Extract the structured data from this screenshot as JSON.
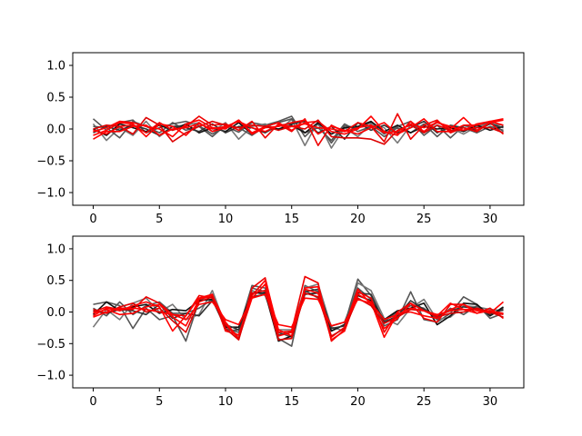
{
  "chart_data": [
    {
      "type": "line",
      "title": "",
      "xlabel": "",
      "ylabel": "",
      "xlim": [
        -1.55,
        32.55
      ],
      "ylim": [
        -1.2,
        1.2
      ],
      "xticks": [
        0,
        5,
        10,
        15,
        20,
        25,
        30
      ],
      "yticks": [
        -1.0,
        -0.5,
        0.0,
        0.5,
        1.0
      ],
      "xtick_labels": [
        "0",
        "5",
        "10",
        "15",
        "20",
        "25",
        "30"
      ],
      "ytick_labels": [
        "−1.0",
        "−0.5",
        "0.0",
        "0.5",
        "1.0"
      ],
      "grid": false,
      "legend": "none",
      "x": [
        0,
        1,
        2,
        3,
        4,
        5,
        6,
        7,
        8,
        9,
        10,
        11,
        12,
        13,
        14,
        15,
        16,
        17,
        18,
        19,
        20,
        21,
        22,
        23,
        24,
        25,
        26,
        27,
        28,
        29,
        30,
        31
      ],
      "series": [
        {
          "color": "#555555",
          "values": [
            0.16,
            -0.02,
            0.1,
            0.14,
            -0.06,
            0.02,
            0.08,
            0.12,
            0.05,
            -0.08,
            0.04,
            -0.05,
            0.1,
            0.06,
            0.12,
            0.2,
            -0.12,
            0.08,
            -0.22,
            0.05,
            0.02,
            0.1,
            -0.08,
            0.04,
            0.12,
            -0.1,
            0.06,
            -0.14,
            0.05,
            0.02,
            0.12,
            -0.04
          ]
        },
        {
          "color": "#777777",
          "values": [
            0.08,
            -0.18,
            0.02,
            -0.1,
            0.12,
            -0.12,
            0.04,
            0.06,
            0.1,
            -0.04,
            0.1,
            -0.16,
            0.04,
            0.08,
            -0.02,
            0.15,
            -0.26,
            0.12,
            -0.3,
            0.02,
            -0.12,
            0.08,
            0.02,
            -0.22,
            0.06,
            -0.04,
            0.1,
            0.02,
            -0.08,
            0.04,
            0.08,
            0.06
          ]
        },
        {
          "color": "#555555",
          "values": [
            0.04,
            0.02,
            -0.14,
            0.12,
            0.04,
            -0.06,
            0.1,
            -0.02,
            0.04,
            -0.12,
            0.06,
            0.02,
            -0.1,
            0.04,
            0.1,
            0.16,
            -0.06,
            0.02,
            -0.18,
            0.08,
            -0.04,
            0.04,
            -0.12,
            0.02,
            -0.06,
            0.08,
            -0.12,
            0.06,
            0.02,
            -0.06,
            0.04,
            -0.02
          ]
        },
        {
          "color": "#111111",
          "values": [
            0.0,
            -0.1,
            0.08,
            0.02,
            -0.04,
            0.06,
            -0.02,
            0.08,
            -0.06,
            0.02,
            -0.04,
            0.1,
            -0.08,
            0.04,
            0.0,
            0.06,
            -0.06,
            0.1,
            -0.08,
            0.02,
            0.04,
            0.12,
            -0.04,
            0.06,
            -0.06,
            0.04,
            0.0,
            0.02,
            -0.04,
            0.06,
            -0.02,
            0.04
          ]
        },
        {
          "color": "#333333",
          "values": [
            -0.06,
            0.04,
            -0.02,
            0.06,
            0.0,
            -0.1,
            0.04,
            0.02,
            -0.04,
            0.08,
            -0.06,
            0.04,
            0.02,
            -0.06,
            0.06,
            0.08,
            0.12,
            -0.06,
            0.04,
            -0.16,
            0.1,
            -0.02,
            0.06,
            -0.06,
            0.02,
            0.12,
            -0.06,
            0.04,
            0.02,
            -0.02,
            0.08,
            0.02
          ]
        },
        {
          "color": "#ee0000",
          "values": [
            -0.02,
            -0.08,
            0.04,
            0.06,
            -0.06,
            0.1,
            -0.02,
            0.04,
            0.2,
            0.06,
            0.08,
            -0.02,
            0.12,
            -0.14,
            0.08,
            -0.04,
            0.16,
            -0.26,
            0.06,
            -0.04,
            0.1,
            0.04,
            -0.2,
            0.24,
            -0.16,
            0.06,
            0.14,
            -0.06,
            0.02,
            -0.04,
            0.1,
            -0.08
          ]
        },
        {
          "color": "#ff0000",
          "values": [
            -0.1,
            -0.02,
            0.1,
            0.08,
            -0.12,
            0.08,
            0.04,
            -0.1,
            0.1,
            -0.04,
            0.02,
            0.14,
            -0.06,
            0.04,
            0.1,
            -0.02,
            0.1,
            0.12,
            -0.04,
            -0.08,
            0.0,
            0.2,
            -0.04,
            -0.1,
            0.12,
            -0.04,
            0.12,
            0.0,
            0.18,
            -0.02,
            0.1,
            0.14
          ]
        },
        {
          "color": "#ff0000",
          "values": [
            -0.04,
            0.02,
            0.12,
            0.1,
            0.04,
            0.0,
            -0.12,
            0.08,
            0.14,
            0.02,
            0.0,
            0.14,
            -0.08,
            0.02,
            0.04,
            0.1,
            0.14,
            -0.08,
            0.04,
            -0.02,
            -0.08,
            0.02,
            0.1,
            -0.08,
            0.02,
            0.16,
            -0.04,
            -0.04,
            0.06,
            0.06,
            0.12,
            0.06
          ]
        },
        {
          "color": "#dd0000",
          "values": [
            0.0,
            0.06,
            0.04,
            -0.08,
            0.18,
            0.06,
            -0.2,
            -0.06,
            0.04,
            0.12,
            0.06,
            0.02,
            0.06,
            0.04,
            -0.02,
            0.04,
            0.0,
            0.14,
            -0.12,
            -0.14,
            -0.14,
            -0.16,
            -0.24,
            -0.02,
            0.06,
            -0.06,
            0.06,
            -0.02,
            -0.02,
            0.02,
            0.02,
            -0.06
          ]
        },
        {
          "color": "#ff0000",
          "values": [
            -0.16,
            -0.04,
            -0.04,
            0.04,
            0.06,
            -0.1,
            0.0,
            0.02,
            0.08,
            0.0,
            0.04,
            0.12,
            0.02,
            -0.04,
            0.06,
            0.04,
            0.08,
            0.02,
            0.0,
            -0.04,
            0.02,
            0.06,
            -0.06,
            -0.04,
            0.08,
            0.02,
            0.1,
            0.04,
            -0.02,
            0.08,
            0.12,
            0.16
          ]
        }
      ]
    },
    {
      "type": "line",
      "title": "",
      "xlabel": "",
      "ylabel": "",
      "xlim": [
        -1.55,
        32.55
      ],
      "ylim": [
        -1.2,
        1.2
      ],
      "xticks": [
        0,
        5,
        10,
        15,
        20,
        25,
        30
      ],
      "yticks": [
        -1.0,
        -0.5,
        0.0,
        0.5,
        1.0
      ],
      "xtick_labels": [
        "0",
        "5",
        "10",
        "15",
        "20",
        "25",
        "30"
      ],
      "ytick_labels": [
        "−1.0",
        "−0.5",
        "0.0",
        "0.5",
        "1.0"
      ],
      "grid": false,
      "legend": "none",
      "x": [
        0,
        1,
        2,
        3,
        4,
        5,
        6,
        7,
        8,
        9,
        10,
        11,
        12,
        13,
        14,
        15,
        16,
        17,
        18,
        19,
        20,
        21,
        22,
        23,
        24,
        25,
        26,
        27,
        28,
        29,
        30,
        31
      ],
      "series": [
        {
          "color": "#555555",
          "values": [
            0.12,
            0.16,
            0.1,
            -0.26,
            0.06,
            -0.12,
            -0.06,
            -0.46,
            0.18,
            0.28,
            -0.3,
            -0.28,
            0.42,
            0.38,
            -0.42,
            -0.54,
            0.42,
            0.32,
            -0.3,
            -0.2,
            0.52,
            0.26,
            -0.22,
            -0.12,
            0.32,
            -0.12,
            -0.16,
            -0.02,
            0.24,
            0.12,
            -0.1,
            -0.02
          ]
        },
        {
          "color": "#777777",
          "values": [
            -0.24,
            0.04,
            -0.12,
            0.14,
            0.22,
            0.0,
            0.12,
            -0.12,
            -0.04,
            0.34,
            -0.22,
            -0.38,
            0.34,
            0.26,
            -0.28,
            -0.28,
            0.38,
            0.44,
            -0.24,
            -0.3,
            0.46,
            0.34,
            -0.1,
            -0.2,
            0.06,
            0.2,
            -0.12,
            -0.08,
            0.1,
            0.08,
            0.04,
            0.02
          ]
        },
        {
          "color": "#555555",
          "values": [
            0.06,
            -0.06,
            0.16,
            -0.04,
            0.1,
            0.16,
            -0.02,
            -0.02,
            0.06,
            0.2,
            -0.26,
            -0.32,
            0.38,
            0.32,
            -0.32,
            -0.4,
            0.34,
            0.22,
            -0.22,
            -0.16,
            0.38,
            0.2,
            -0.14,
            0.0,
            0.1,
            0.06,
            -0.12,
            0.06,
            -0.04,
            0.1,
            -0.06,
            0.06
          ]
        },
        {
          "color": "#111111",
          "values": [
            -0.04,
            0.16,
            0.02,
            0.08,
            0.12,
            -0.02,
            0.04,
            0.02,
            0.18,
            0.2,
            -0.24,
            -0.24,
            0.3,
            0.3,
            -0.46,
            -0.38,
            0.28,
            0.3,
            -0.3,
            -0.2,
            0.26,
            0.18,
            -0.12,
            0.02,
            0.06,
            0.14,
            -0.2,
            -0.06,
            0.14,
            0.12,
            -0.06,
            0.08
          ]
        },
        {
          "color": "#333333",
          "values": [
            0.02,
            -0.02,
            0.04,
            0.02,
            -0.04,
            0.12,
            -0.1,
            -0.02,
            -0.06,
            0.18,
            -0.2,
            -0.28,
            0.24,
            0.28,
            -0.36,
            -0.32,
            0.32,
            0.36,
            -0.26,
            -0.22,
            0.3,
            0.28,
            -0.16,
            -0.06,
            0.18,
            0.04,
            -0.06,
            0.02,
            0.08,
            0.06,
            -0.04,
            0.04
          ]
        },
        {
          "color": "#ee0000",
          "values": [
            0.0,
            0.08,
            0.04,
            0.04,
            0.24,
            0.14,
            -0.04,
            -0.06,
            0.26,
            0.22,
            -0.2,
            -0.42,
            0.38,
            0.54,
            -0.32,
            -0.3,
            0.56,
            0.46,
            -0.46,
            -0.28,
            0.32,
            0.22,
            -0.32,
            0.0,
            0.14,
            -0.1,
            -0.16,
            0.12,
            0.12,
            -0.02,
            0.06,
            -0.1
          ]
        },
        {
          "color": "#ff0000",
          "values": [
            -0.06,
            0.06,
            0.02,
            0.1,
            0.16,
            0.08,
            -0.3,
            -0.06,
            0.22,
            0.28,
            -0.3,
            -0.36,
            0.26,
            0.5,
            -0.28,
            -0.38,
            0.38,
            0.4,
            -0.4,
            -0.24,
            0.36,
            0.12,
            -0.26,
            -0.1,
            0.14,
            0.02,
            -0.06,
            0.14,
            0.04,
            0.04,
            -0.02,
            0.16
          ]
        },
        {
          "color": "#ff0000",
          "values": [
            -0.02,
            0.04,
            -0.04,
            -0.02,
            0.08,
            0.12,
            -0.08,
            -0.22,
            0.2,
            0.26,
            -0.16,
            -0.42,
            0.22,
            0.44,
            -0.38,
            -0.32,
            0.36,
            0.3,
            -0.44,
            -0.3,
            0.28,
            0.16,
            -0.4,
            -0.02,
            0.0,
            -0.06,
            -0.1,
            0.04,
            0.12,
            0.02,
            0.02,
            -0.02
          ]
        },
        {
          "color": "#dd0000",
          "values": [
            0.04,
            -0.02,
            0.08,
            0.14,
            0.0,
            0.06,
            -0.14,
            -0.32,
            0.16,
            0.24,
            -0.26,
            -0.44,
            0.3,
            0.34,
            -0.44,
            -0.42,
            0.3,
            0.24,
            -0.38,
            -0.26,
            0.22,
            0.1,
            -0.18,
            -0.08,
            0.04,
            0.02,
            -0.08,
            -0.02,
            0.0,
            0.06,
            0.0,
            -0.08
          ]
        },
        {
          "color": "#ff0000",
          "values": [
            -0.08,
            0.0,
            0.06,
            0.06,
            0.04,
            0.0,
            -0.04,
            -0.12,
            0.12,
            0.16,
            -0.12,
            -0.2,
            0.22,
            0.28,
            -0.2,
            -0.24,
            0.22,
            0.2,
            -0.22,
            -0.16,
            0.2,
            0.14,
            -0.12,
            -0.04,
            0.06,
            0.02,
            -0.04,
            0.02,
            0.04,
            -0.02,
            0.02,
            -0.04
          ]
        }
      ]
    }
  ]
}
